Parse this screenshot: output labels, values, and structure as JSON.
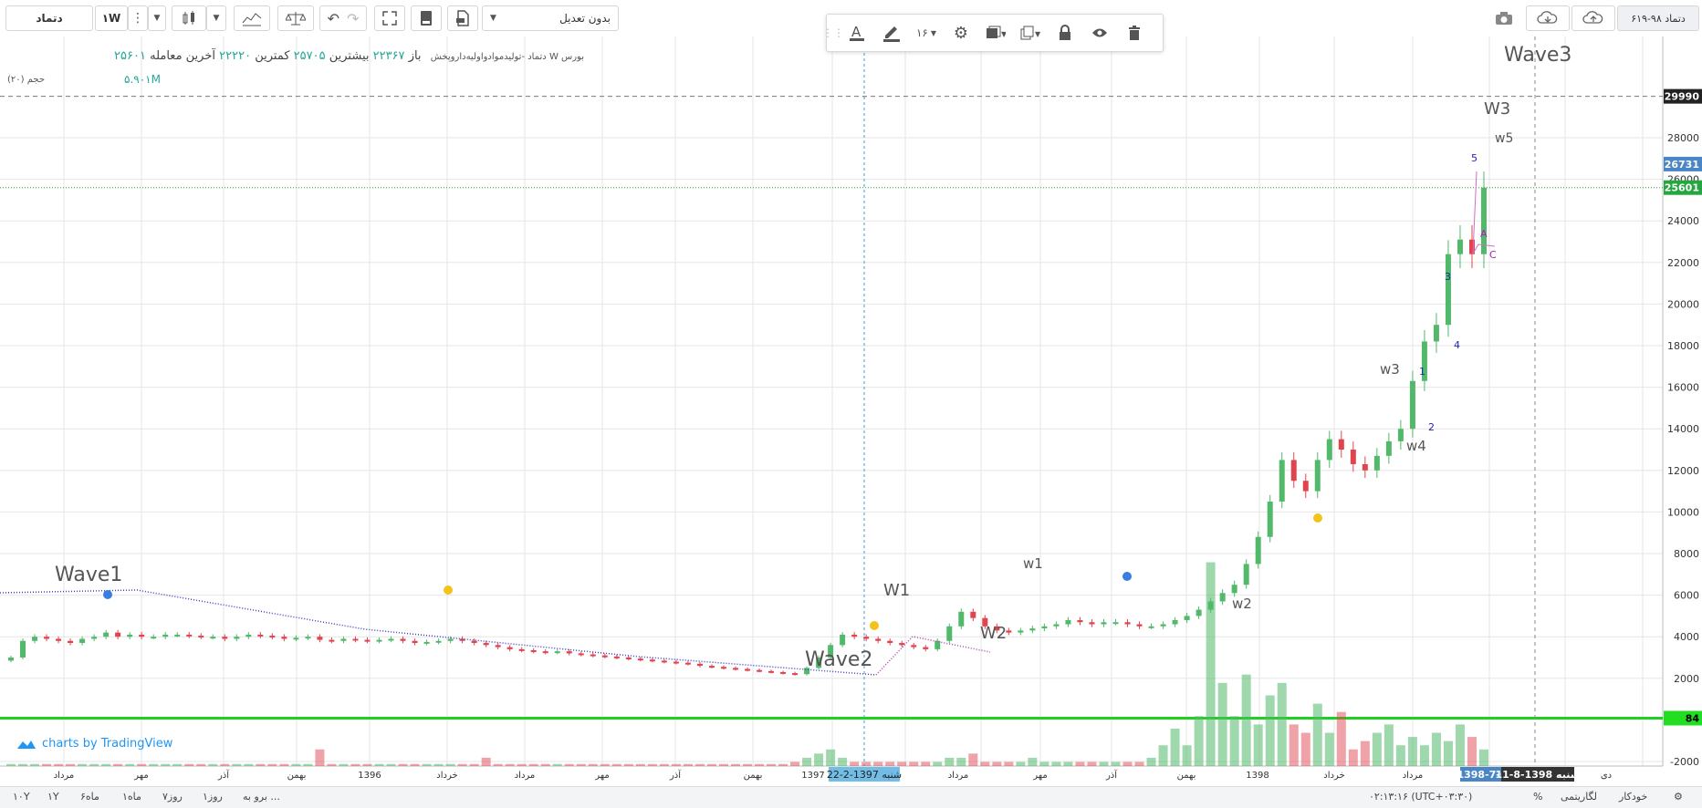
{
  "toolbar": {
    "symbol": "دتماد",
    "interval": "۱W",
    "adjustment": "بدون تعدیل",
    "snapshot": "دتماد ۹۸-۶۱۹"
  },
  "floating_toolbar": {
    "font_size": "۱۶"
  },
  "legend": {
    "series_name": "بورس W دتماد -تولیدموادواولیه‌داروپخش",
    "open_label": "باز",
    "open_value": "۲۲۳۶۷",
    "high_label": "بیشترین",
    "high_value": "۲۵۷۰۵",
    "low_label": "کمترین",
    "low_value": "۲۲۲۲۰",
    "close_label": "آخرین معامله",
    "close_value": "۲۵۶۰۱",
    "volume_label": "حجم (۲۰)",
    "volume_value": "۵.۹۰۱M"
  },
  "watermark": "charts by TradingView",
  "bottom": {
    "ranges": [
      "۱۰Y",
      "۱Y",
      "۶ماه",
      "۱ماه",
      "۷روز",
      "۱روز",
      "برو به ..."
    ],
    "clock": "۰۲:۱۳:۱۶ (UTC+۰۳:۳۰)",
    "percent": "%",
    "log": "لگاریتمی",
    "auto": "خودکار"
  },
  "chart_data": {
    "type": "candlestick",
    "title": "",
    "xlabel": "",
    "ylabel": "",
    "ylim": [
      -3000,
      30800
    ],
    "y_ticks": [
      -2000,
      2000,
      4000,
      6000,
      8000,
      10000,
      12000,
      14000,
      16000,
      18000,
      20000,
      22000,
      24000,
      26000,
      28000
    ],
    "price_tags": [
      {
        "value": 29990,
        "text": "29990",
        "color": "#222222"
      },
      {
        "value": 26731,
        "text": "26731",
        "color": "#4a86c5"
      },
      {
        "value": 25601,
        "text": "25601",
        "color": "#26a641"
      },
      {
        "value": 84,
        "text": "84",
        "color": "#22dd22"
      }
    ],
    "x_labels": [
      "مرداد",
      "مهر",
      "آذر",
      "بهمن",
      "1396",
      "خرداد",
      "مرداد",
      "مهر",
      "آذر",
      "بهمن",
      "1397",
      "شنبه 1397-2-22",
      "مرداد",
      "مهر",
      "آذر",
      "بهمن",
      "1398",
      "خرداد",
      "مرداد",
      "1398-7-6",
      "شنبه 1398-8-11",
      "دی"
    ],
    "close_values": [
      3000,
      3800,
      4000,
      3900,
      3800,
      3700,
      3900,
      4000,
      4200,
      4000,
      4100,
      4000,
      4000,
      4100,
      4100,
      4050,
      4000,
      4000,
      3900,
      4000,
      4100,
      4050,
      4000,
      3900,
      3950,
      4000,
      3850,
      3800,
      3900,
      3850,
      3800,
      3850,
      3900,
      3800,
      3700,
      3750,
      3800,
      3900,
      3800,
      3700,
      3600,
      3500,
      3400,
      3350,
      3300,
      3250,
      3300,
      3200,
      3150,
      3100,
      3050,
      3000,
      2950,
      2900,
      2850,
      2800,
      2750,
      2700,
      2600,
      2550,
      2500,
      2450,
      2400,
      2350,
      2300,
      2250,
      2200,
      2500,
      3000,
      3600,
      4100,
      4000,
      3900,
      3800,
      3700,
      3600,
      3500,
      3400,
      3800,
      4500,
      5200,
      4900,
      4500,
      4300,
      4200,
      4300,
      4400,
      4500,
      4600,
      4800,
      4700,
      4600,
      4700,
      4700,
      4600,
      4500,
      4500,
      4600,
      4800,
      5000,
      5300,
      5700,
      6100,
      6500,
      7500,
      8800,
      10500,
      12500,
      11500,
      11000,
      12500,
      13500,
      13000,
      12300,
      12000,
      12700,
      13400,
      14000,
      16300,
      18200,
      19000,
      22400,
      23100,
      22400,
      25601
    ],
    "volume_values": [
      0.05,
      0.05,
      0.05,
      0.05,
      0.05,
      0.05,
      0.05,
      0.05,
      0.05,
      0.05,
      0.05,
      0.05,
      0.05,
      0.05,
      0.05,
      0.05,
      0.05,
      0.05,
      0.05,
      0.05,
      0.05,
      0.05,
      0.05,
      0.05,
      0.05,
      0.05,
      0.4,
      0.05,
      0.05,
      0.05,
      0.05,
      0.05,
      0.05,
      0.05,
      0.05,
      0.05,
      0.05,
      0.05,
      0.05,
      0.05,
      0.2,
      0.05,
      0.05,
      0.05,
      0.05,
      0.05,
      0.05,
      0.05,
      0.05,
      0.05,
      0.05,
      0.05,
      0.05,
      0.05,
      0.05,
      0.05,
      0.05,
      0.05,
      0.05,
      0.05,
      0.05,
      0.05,
      0.05,
      0.05,
      0.05,
      0.05,
      0.1,
      0.2,
      0.3,
      0.4,
      0.2,
      0.1,
      0.1,
      0.1,
      0.1,
      0.1,
      0.1,
      0.1,
      0.1,
      0.2,
      0.2,
      0.3,
      0.1,
      0.1,
      0.1,
      0.1,
      0.2,
      0.1,
      0.1,
      0.1,
      0.1,
      0.1,
      0.1,
      0.1,
      0.1,
      0.1,
      0.2,
      0.5,
      0.9,
      0.5,
      1.2,
      4.9,
      2.0,
      1.2,
      2.2,
      1.0,
      1.7,
      2.0,
      1.0,
      0.8,
      1.5,
      0.8,
      1.3,
      0.4,
      0.6,
      0.8,
      1.0,
      0.5,
      0.7,
      0.5,
      0.8,
      0.6,
      1.0,
      0.7,
      0.4
    ]
  },
  "annotations": {
    "wave1": "Wave1",
    "wave2": "Wave2",
    "wave3": "Wave3",
    "W1": "W1",
    "W2": "W2",
    "w1": "w1",
    "w2": "w2",
    "w3": "w3",
    "w4": "w4",
    "W3": "W3",
    "w5": "w5",
    "n1": "1",
    "n2": "2",
    "n3": "3",
    "n4": "4",
    "n5": "5",
    "nA": "A",
    "nC": "C"
  }
}
